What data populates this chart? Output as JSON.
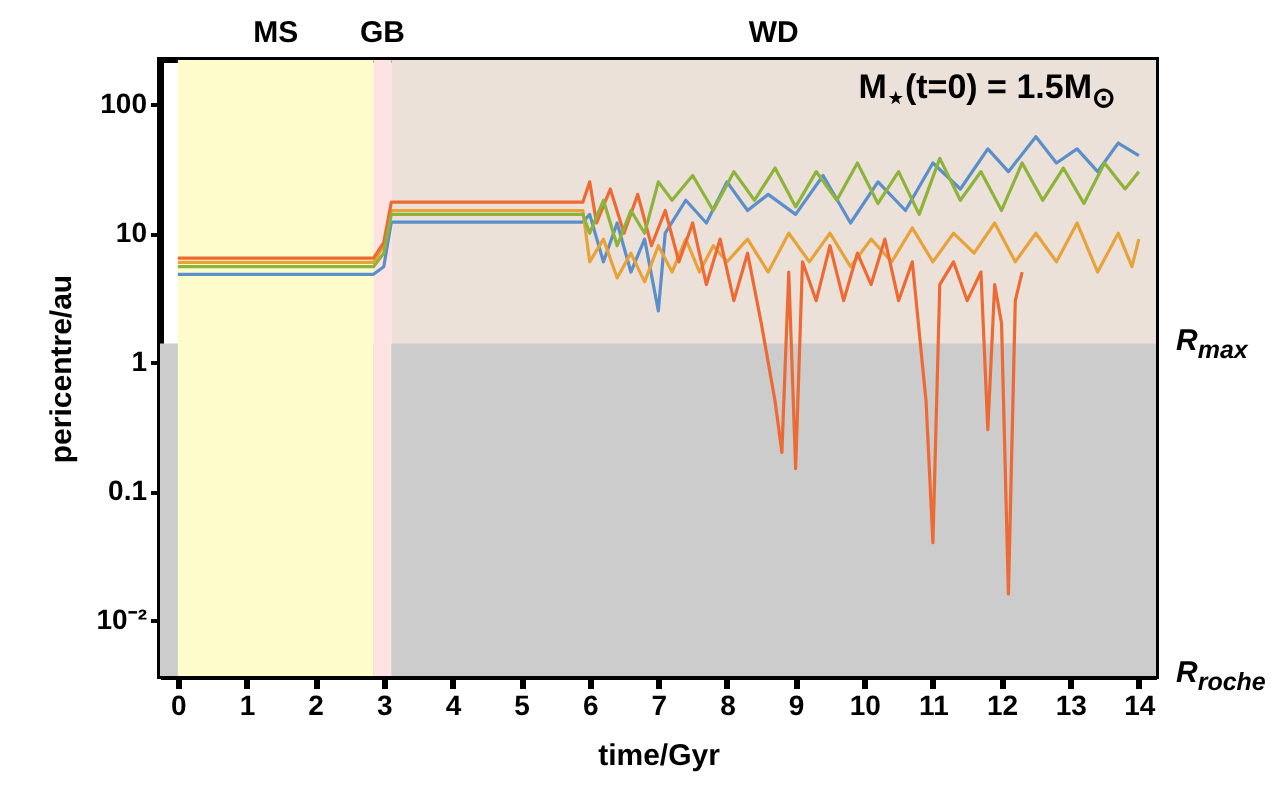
{
  "chart_data": {
    "type": "line",
    "xlabel": "time/Gyr",
    "ylabel": "pericentre/au",
    "annotations": [
      "M$_{⋆}$(t=0) = 1.5M$_{⊙}$",
      {
        "text": "R$_{max}$",
        "x": 14.25,
        "y": 1.4
      },
      {
        "text": "R$_{roche}$",
        "x": 14.25,
        "y": 0.0037
      }
    ],
    "xlim": [
      -0.26,
      14.25
    ],
    "xticks": [
      0,
      1,
      2,
      3,
      4,
      5,
      6,
      7,
      8,
      9,
      10,
      11,
      12,
      13,
      14
    ],
    "ylim": [
      0.0037,
      220
    ],
    "yticks": [
      100,
      10,
      1,
      0.1,
      {
        "value": 0.01,
        "label": "10⁻²"
      }
    ],
    "log": "y",
    "grid": false,
    "bands": [
      {
        "axis": "x",
        "from": 3.11,
        "to": 14.25,
        "label": "WD",
        "color": "#ebe1d9"
      },
      {
        "axis": "y",
        "from": 0.0037,
        "to": 1.4,
        "color": "#cccccc"
      },
      {
        "axis": "x",
        "from": 0,
        "to": 2.85,
        "label": "MS",
        "color": "#fffccc"
      },
      {
        "axis": "x",
        "from": 2.85,
        "to": 3.11,
        "label": "GB",
        "color": "#fde3e3"
      }
    ],
    "series": [
      {
        "color": "#5b8fc9",
        "x": [
          0,
          2.85,
          3.0,
          3.11,
          5.9,
          6.0,
          6.2,
          6.4,
          6.6,
          6.8,
          7.0,
          7.1,
          7.4,
          7.7,
          8.0,
          8.3,
          8.6,
          9.0,
          9.4,
          9.8,
          10.2,
          10.6,
          11.0,
          11.4,
          11.8,
          12.1,
          12.5,
          12.8,
          13.1,
          13.4,
          13.7,
          14.0
        ],
        "values": [
          4.8,
          4.8,
          5.5,
          12.2,
          12.2,
          14,
          6,
          12,
          5,
          9,
          2.5,
          10,
          18,
          12,
          25,
          15,
          20,
          14,
          28,
          12,
          25,
          15,
          35,
          22,
          45,
          30,
          56,
          35,
          45,
          30,
          50,
          40
        ]
      },
      {
        "color": "#e8a23a",
        "x": [
          0,
          2.85,
          3.0,
          3.11,
          5.9,
          6.0,
          6.2,
          6.4,
          6.6,
          6.8,
          7.0,
          7.2,
          7.4,
          7.6,
          7.8,
          8.0,
          8.3,
          8.6,
          8.9,
          9.2,
          9.5,
          9.8,
          10.1,
          10.4,
          10.7,
          11.0,
          11.3,
          11.6,
          11.9,
          12.2,
          12.5,
          12.8,
          13.1,
          13.4,
          13.7,
          13.9,
          14.0
        ],
        "values": [
          5.95,
          5.95,
          8,
          15,
          15,
          6,
          9,
          4.5,
          7,
          4.2,
          8,
          5,
          9,
          5,
          8,
          6,
          9,
          5,
          10,
          6,
          10,
          5.5,
          9,
          6,
          11,
          6,
          10,
          7,
          12,
          6,
          10,
          6,
          12,
          5,
          10,
          5.5,
          9
        ]
      },
      {
        "color": "#ee6a35",
        "x": [
          0,
          2.85,
          3.0,
          3.11,
          5.9,
          6.0,
          6.1,
          6.3,
          6.5,
          6.7,
          6.9,
          7.1,
          7.3,
          7.5,
          7.7,
          7.9,
          8.1,
          8.3,
          8.5,
          8.7,
          8.8,
          8.9,
          9.0,
          9.1,
          9.3,
          9.5,
          9.7,
          9.9,
          10.1,
          10.3,
          10.5,
          10.7,
          10.9,
          11.0,
          11.1,
          11.3,
          11.5,
          11.7,
          11.8,
          11.9,
          12.0,
          12.1,
          12.2,
          12.3
        ],
        "values": [
          6.4,
          6.4,
          8.5,
          17.4,
          17.4,
          25,
          12,
          22,
          10,
          20,
          8,
          15,
          6,
          12,
          4,
          9,
          3,
          7,
          2,
          0.5,
          0.2,
          5,
          0.15,
          6,
          3,
          8,
          3,
          7,
          4,
          9,
          3,
          6,
          0.5,
          0.04,
          4,
          6,
          3,
          5,
          0.3,
          4,
          2,
          0.016,
          3,
          5
        ]
      },
      {
        "color": "#8db33a",
        "x": [
          0,
          2.85,
          3.0,
          3.11,
          5.9,
          6.0,
          6.2,
          6.4,
          6.6,
          6.8,
          7.0,
          7.2,
          7.5,
          7.8,
          8.1,
          8.4,
          8.7,
          9.0,
          9.3,
          9.6,
          9.9,
          10.2,
          10.5,
          10.8,
          11.1,
          11.4,
          11.7,
          12.0,
          12.3,
          12.6,
          12.9,
          13.2,
          13.5,
          13.8,
          14.0
        ],
        "values": [
          5.5,
          5.5,
          7,
          14,
          14,
          10,
          18,
          8,
          15,
          10,
          25,
          18,
          28,
          15,
          30,
          18,
          32,
          16,
          30,
          18,
          35,
          17,
          30,
          14,
          38,
          18,
          30,
          15,
          35,
          18,
          32,
          17,
          35,
          22,
          30
        ]
      }
    ]
  }
}
